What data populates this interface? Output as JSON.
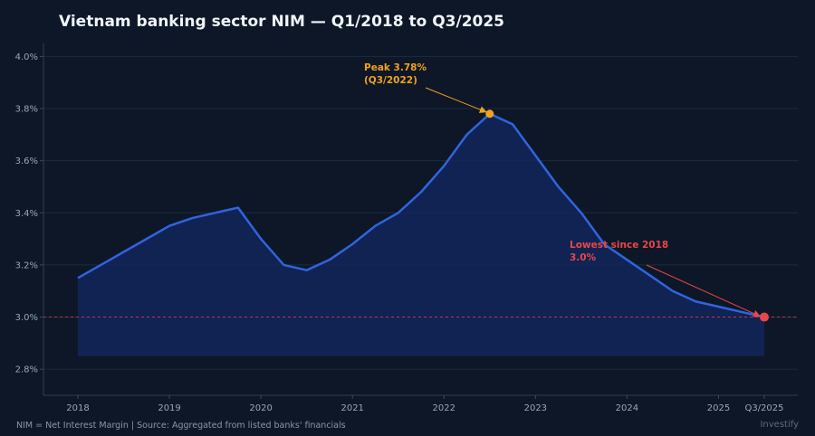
{
  "title": "Vietnam banking sector NIM — Q1/2018 to Q3/2025",
  "footer": {
    "note": "NIM = Net Interest Margin  |  Source: Aggregated from listed banks' financials",
    "brand": "Investify"
  },
  "colors": {
    "background": "#0d1727",
    "line": "#2f64e0",
    "area": "#13265a",
    "peak": "#f2a21c",
    "low": "#e8474a",
    "reference_line": "#b8394a"
  },
  "chart_data": {
    "type": "area",
    "x": [
      "Q1/2018",
      "Q2/2018",
      "Q3/2018",
      "Q4/2018",
      "Q1/2019",
      "Q2/2019",
      "Q3/2019",
      "Q4/2019",
      "Q1/2020",
      "Q2/2020",
      "Q3/2020",
      "Q4/2020",
      "Q1/2021",
      "Q2/2021",
      "Q3/2021",
      "Q4/2021",
      "Q1/2022",
      "Q2/2022",
      "Q3/2022",
      "Q4/2022",
      "Q1/2023",
      "Q2/2023",
      "Q3/2023",
      "Q4/2023",
      "Q1/2024",
      "Q2/2024",
      "Q3/2024",
      "Q4/2024",
      "Q1/2025",
      "Q2/2025",
      "Q3/2025"
    ],
    "series": [
      {
        "values": [
          3.15,
          3.2,
          3.25,
          3.3,
          3.35,
          3.38,
          3.4,
          3.42,
          3.3,
          3.2,
          3.18,
          3.22,
          3.28,
          3.35,
          3.4,
          3.48,
          3.58,
          3.7,
          3.78,
          3.74,
          3.62,
          3.5,
          3.4,
          3.28,
          3.22,
          3.16,
          3.1,
          3.06,
          3.04,
          3.02,
          3.0
        ]
      }
    ],
    "x_tick_labels": [
      "2018",
      "2019",
      "2020",
      "2021",
      "2022",
      "2023",
      "2024",
      "2025",
      "Q3/2025"
    ],
    "x_tick_positions": [
      "Q1/2018",
      "Q1/2019",
      "Q1/2020",
      "Q1/2021",
      "Q1/2022",
      "Q1/2023",
      "Q1/2024",
      "Q1/2025",
      "Q3/2025"
    ],
    "y_ticks": [
      2.8,
      3.0,
      3.2,
      3.4,
      3.6,
      3.8,
      4.0
    ],
    "y_tick_labels": [
      "2.8%",
      "3.0%",
      "3.2%",
      "3.4%",
      "3.6%",
      "3.8%",
      "4.0%"
    ],
    "ylim": [
      2.7,
      4.05
    ],
    "area_baseline": 2.85,
    "reference_line": 3.0,
    "grid": true,
    "annotations": [
      {
        "id": "peak",
        "line1": "Peak 3.78%",
        "line2": "(Q3/2022)",
        "x": "Q3/2022",
        "y": 3.78
      },
      {
        "id": "low",
        "line1": "Lowest since 2018",
        "line2": "3.0%",
        "x": "Q3/2025",
        "y": 3.0
      }
    ]
  }
}
